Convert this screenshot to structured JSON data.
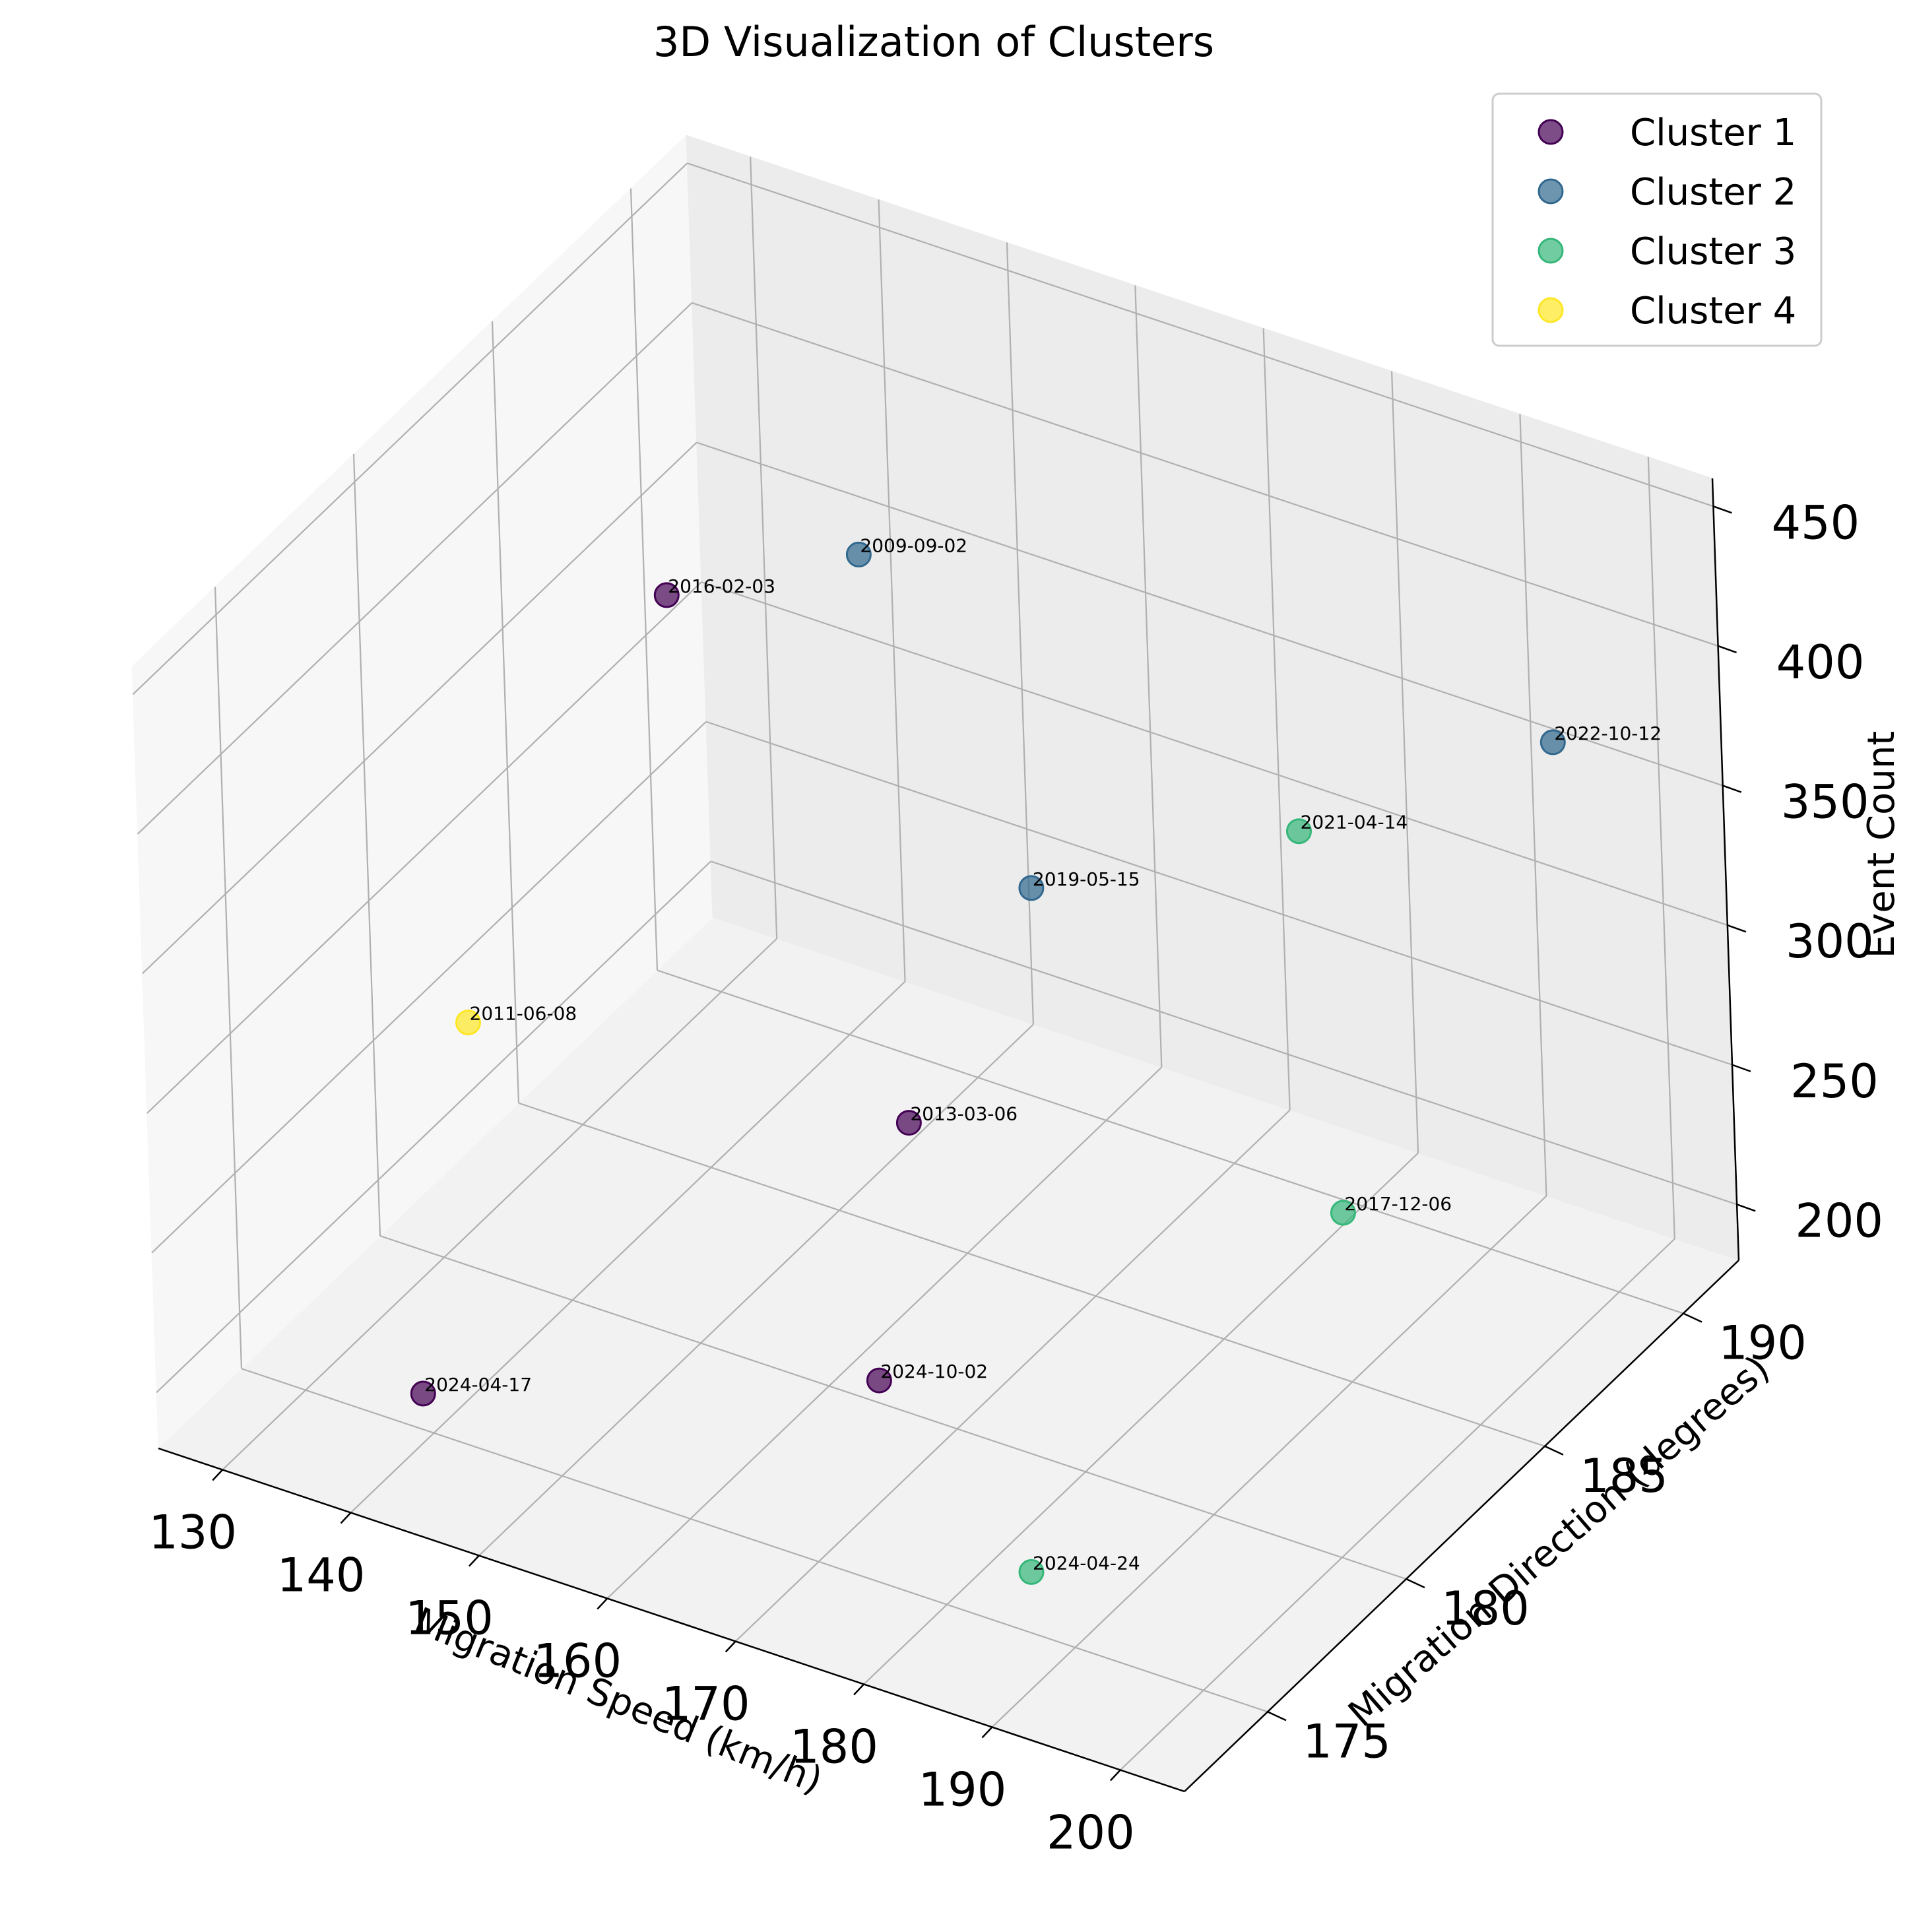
{
  "chart_data": {
    "type": "scatter",
    "projection": "3d",
    "title": "3D Visualization of Clusters",
    "xlabel": "Migration Speed (km/h)",
    "ylabel": "Migration Direction (degrees)",
    "zlabel": "Event Count",
    "xticks": [
      "130",
      "140",
      "150",
      "160",
      "170",
      "180",
      "190",
      "200"
    ],
    "yticks": [
      "175",
      "180",
      "185",
      "190"
    ],
    "zticks": [
      "200",
      "250",
      "300",
      "350",
      "400",
      "450"
    ],
    "grid": true,
    "legend_position": "top-right",
    "colors": {
      "Cluster 1": "#440154",
      "Cluster 2": "#31688e",
      "Cluster 3": "#35b779",
      "Cluster 4": "#fde725"
    },
    "series": [
      {
        "name": "Cluster 1",
        "points": [
          {
            "label": "2016-02-03",
            "x": 129,
            "y": 189,
            "z": 330
          },
          {
            "label": "2013-03-06",
            "x": 167,
            "y": 180,
            "z": 285
          },
          {
            "label": "2024-10-02",
            "x": 173,
            "y": 176,
            "z": 240
          },
          {
            "label": "2024-04-17",
            "x": 137,
            "y": 176,
            "z": 180
          }
        ]
      },
      {
        "name": "Cluster 2",
        "points": [
          {
            "label": "2009-09-02",
            "x": 142,
            "y": 190,
            "z": 355
          },
          {
            "label": "2019-05-15",
            "x": 166,
            "y": 185,
            "z": 320
          },
          {
            "label": "2022-10-12",
            "x": 203,
            "y": 187,
            "z": 410
          }
        ]
      },
      {
        "name": "Cluster 3",
        "points": [
          {
            "label": "2021-04-14",
            "x": 185,
            "y": 186,
            "z": 360
          },
          {
            "label": "2017-12-06",
            "x": 201,
            "y": 180,
            "z": 305
          },
          {
            "label": "2024-04-24",
            "x": 189,
            "y": 174,
            "z": 215
          }
        ]
      },
      {
        "name": "Cluster 4",
        "points": [
          {
            "label": "2011-06-08",
            "x": 128,
            "y": 182,
            "z": 242
          }
        ]
      }
    ]
  }
}
